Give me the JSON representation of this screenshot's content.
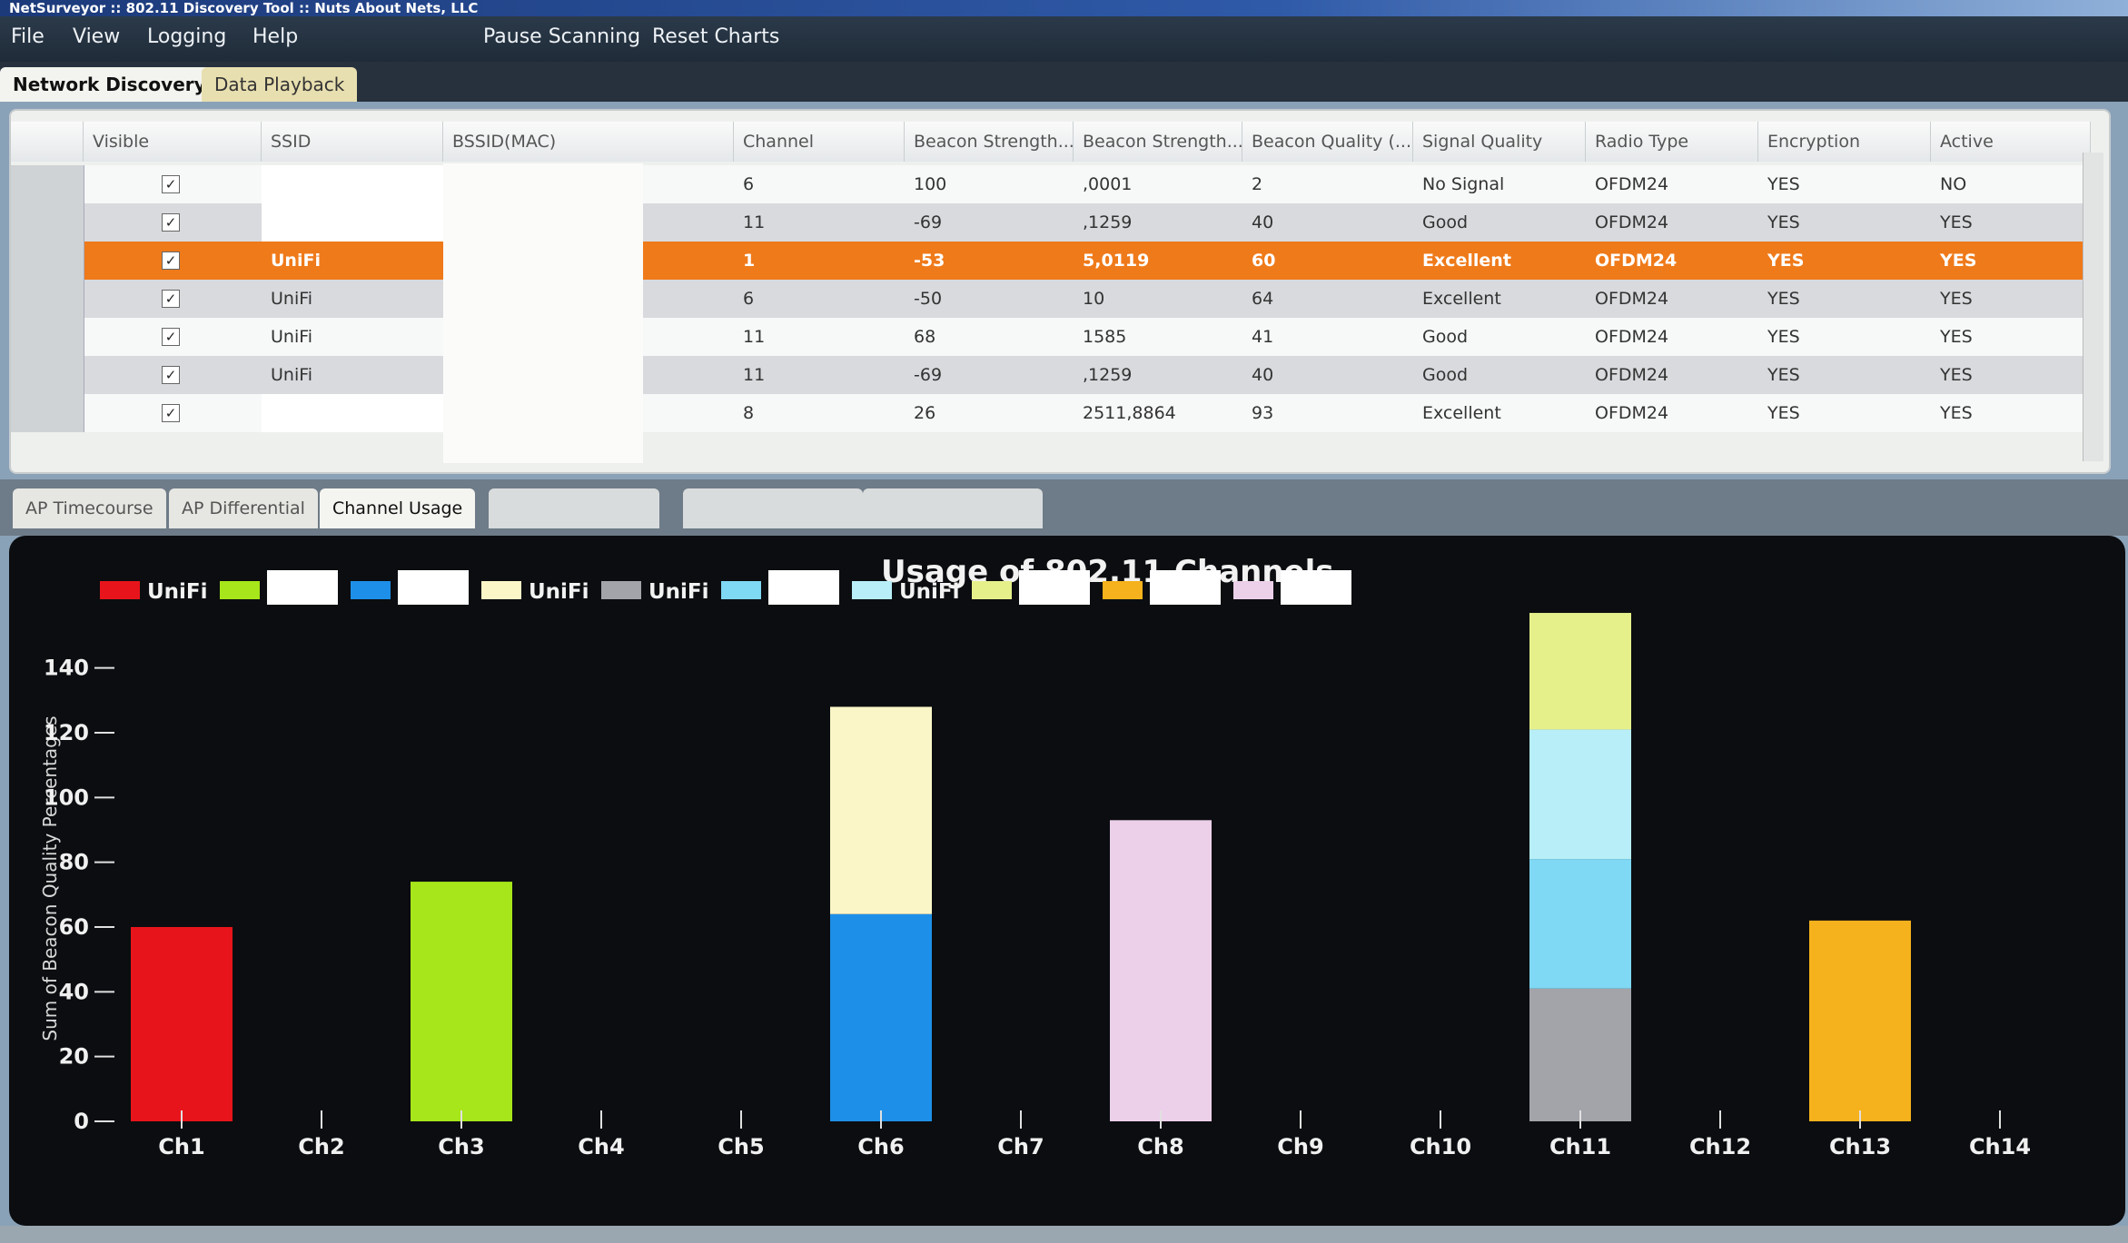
{
  "window": {
    "title": "NetSurveyor :: 802.11 Discovery Tool :: Nuts About Nets, LLC"
  },
  "menu": {
    "items": [
      "File",
      "View",
      "Logging",
      "Help"
    ],
    "actions": [
      "Pause Scanning",
      "Reset Charts"
    ]
  },
  "top_tabs": [
    "Network Discovery",
    "Data Playback"
  ],
  "grid": {
    "columns": [
      "Visible",
      "SSID",
      "BSSID(MAC)",
      "Channel",
      "Beacon Strength...",
      "Beacon Strength...",
      "Beacon Quality (...",
      "Signal Quality",
      "Radio Type",
      "Encryption",
      "Active"
    ],
    "rows": [
      {
        "ssid": "",
        "channel": "6",
        "beacon_strength_dbm": "100",
        "beacon_strength_mw": ",0001",
        "beacon_quality": "2",
        "signal_quality": "No Signal",
        "radio_type": "OFDM24",
        "encryption": "YES",
        "active": "NO"
      },
      {
        "ssid": "",
        "channel": "11",
        "beacon_strength_dbm": "-69",
        "beacon_strength_mw": ",1259",
        "beacon_quality": "40",
        "signal_quality": "Good",
        "radio_type": "OFDM24",
        "encryption": "YES",
        "active": "YES"
      },
      {
        "ssid": "UniFi",
        "channel": "1",
        "beacon_strength_dbm": "-53",
        "beacon_strength_mw": "5,0119",
        "beacon_quality": "60",
        "signal_quality": "Excellent",
        "radio_type": "OFDM24",
        "encryption": "YES",
        "active": "YES"
      },
      {
        "ssid": "UniFi",
        "channel": "6",
        "beacon_strength_dbm": "-50",
        "beacon_strength_mw": "10",
        "beacon_quality": "64",
        "signal_quality": "Excellent",
        "radio_type": "OFDM24",
        "encryption": "YES",
        "active": "YES"
      },
      {
        "ssid": "UniFi",
        "channel": "11",
        "beacon_strength_dbm": "68",
        "beacon_strength_mw": "1585",
        "beacon_quality": "41",
        "signal_quality": "Good",
        "radio_type": "OFDM24",
        "encryption": "YES",
        "active": "YES"
      },
      {
        "ssid": "UniFi",
        "channel": "11",
        "beacon_strength_dbm": "-69",
        "beacon_strength_mw": ",1259",
        "beacon_quality": "40",
        "signal_quality": "Good",
        "radio_type": "OFDM24",
        "encryption": "YES",
        "active": "YES"
      },
      {
        "ssid": "",
        "channel": "8",
        "beacon_strength_dbm": "26",
        "beacon_strength_mw": "2511,8864",
        "beacon_quality": "93",
        "signal_quality": "Excellent",
        "radio_type": "OFDM24",
        "encryption": "YES",
        "active": "YES"
      }
    ],
    "selected_row": 2
  },
  "lower_tabs": [
    "AP Timecourse",
    "AP Differential",
    "Channel Usage"
  ],
  "chart_data": {
    "type": "bar",
    "title": "Usage of 802.11 Channels",
    "ylabel": "Sum of Beacon Quality Percentages",
    "xlabel": "",
    "ylim": [
      0,
      150
    ],
    "yticks": [
      0,
      20,
      40,
      60,
      80,
      100,
      120,
      140
    ],
    "categories": [
      "Ch1",
      "Ch2",
      "Ch3",
      "Ch4",
      "Ch5",
      "Ch6",
      "Ch7",
      "Ch8",
      "Ch9",
      "Ch10",
      "Ch11",
      "Ch12",
      "Ch13",
      "Ch14"
    ],
    "stacked": true,
    "legend_position": "top-left",
    "series": [
      {
        "name": "UniFi",
        "color": "#e8141b",
        "values": [
          60,
          0,
          0,
          0,
          0,
          0,
          0,
          0,
          0,
          0,
          0,
          0,
          0,
          0
        ]
      },
      {
        "color": "#a6e61a",
        "values": [
          0,
          0,
          74,
          0,
          0,
          0,
          0,
          0,
          0,
          0,
          0,
          0,
          0,
          0
        ]
      },
      {
        "color": "#1e8fe8",
        "values": [
          0,
          0,
          0,
          0,
          0,
          64,
          0,
          0,
          0,
          0,
          0,
          0,
          0,
          0
        ]
      },
      {
        "name": "UniFi",
        "color": "#fbf6c8",
        "values": [
          0,
          0,
          0,
          0,
          0,
          64,
          0,
          0,
          0,
          0,
          0,
          0,
          0,
          0
        ]
      },
      {
        "name": "UniFi",
        "color": "#a3a3aa",
        "values": [
          0,
          0,
          0,
          0,
          0,
          0,
          0,
          0,
          0,
          0,
          41,
          0,
          0,
          0
        ]
      },
      {
        "color": "#7fd8f4",
        "values": [
          0,
          0,
          0,
          0,
          0,
          0,
          0,
          0,
          0,
          0,
          40,
          0,
          0,
          0
        ]
      },
      {
        "name": "UniFi",
        "color": "#b8eef8",
        "values": [
          0,
          0,
          0,
          0,
          0,
          0,
          0,
          0,
          0,
          0,
          40,
          0,
          0,
          0
        ]
      },
      {
        "color": "#e6f08a",
        "values": [
          0,
          0,
          0,
          0,
          0,
          0,
          0,
          0,
          0,
          0,
          36,
          0,
          0,
          0
        ]
      },
      {
        "color": "#f6b21c",
        "values": [
          0,
          0,
          0,
          0,
          0,
          0,
          0,
          0,
          0,
          0,
          0,
          0,
          62,
          0
        ]
      },
      {
        "color": "#ecd0ea",
        "values": [
          0,
          0,
          0,
          0,
          0,
          0,
          0,
          93,
          0,
          0,
          0,
          0,
          0,
          0
        ]
      }
    ]
  }
}
